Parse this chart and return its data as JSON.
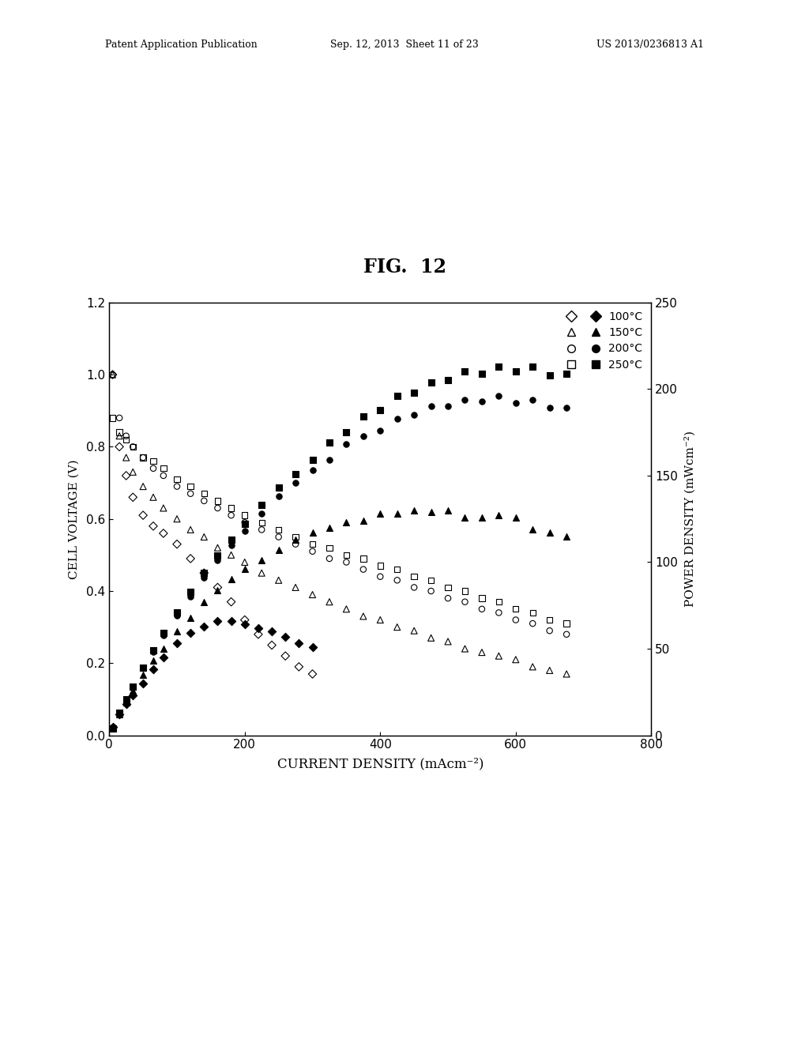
{
  "title": "FIG.  12",
  "xlabel": "CURRENT DENSITY (mAcm⁻²)",
  "ylabel_left": "CELL VOLTAGE (V)",
  "ylabel_right": "POWER DENSITY (mWcm⁻²)",
  "xlim": [
    0,
    800
  ],
  "ylim_left": [
    0,
    1.2
  ],
  "ylim_right": [
    0,
    250
  ],
  "header_left": "Patent Application Publication",
  "header_mid": "Sep. 12, 2013  Sheet 11 of 23",
  "header_right": "US 2013/0236813 A1",
  "voltage_100": {
    "x": [
      5,
      15,
      25,
      35,
      50,
      65,
      80,
      100,
      120,
      140,
      160,
      180,
      200,
      220,
      240,
      260,
      280,
      300
    ],
    "y": [
      1.0,
      0.8,
      0.72,
      0.66,
      0.61,
      0.58,
      0.56,
      0.53,
      0.49,
      0.45,
      0.41,
      0.37,
      0.32,
      0.28,
      0.25,
      0.22,
      0.19,
      0.17
    ]
  },
  "power_100": {
    "x": [
      5,
      15,
      25,
      35,
      50,
      65,
      80,
      100,
      120,
      140,
      160,
      180,
      200,
      220,
      240,
      260,
      280,
      300
    ],
    "y": [
      5,
      12,
      18,
      23,
      30,
      38,
      45,
      53,
      59,
      63,
      66,
      66,
      64,
      62,
      60,
      57,
      53,
      51
    ]
  },
  "voltage_150": {
    "x": [
      5,
      15,
      25,
      35,
      50,
      65,
      80,
      100,
      120,
      140,
      160,
      180,
      200,
      225,
      250,
      275,
      300,
      325,
      350,
      375,
      400,
      425,
      450,
      475,
      500,
      525,
      550,
      575,
      600,
      625,
      650,
      675
    ],
    "y": [
      1.0,
      0.83,
      0.77,
      0.73,
      0.69,
      0.66,
      0.63,
      0.6,
      0.57,
      0.55,
      0.52,
      0.5,
      0.48,
      0.45,
      0.43,
      0.41,
      0.39,
      0.37,
      0.35,
      0.33,
      0.32,
      0.3,
      0.29,
      0.27,
      0.26,
      0.24,
      0.23,
      0.22,
      0.21,
      0.19,
      0.18,
      0.17
    ]
  },
  "power_150": {
    "x": [
      5,
      15,
      25,
      35,
      50,
      65,
      80,
      100,
      120,
      140,
      160,
      180,
      200,
      225,
      250,
      275,
      300,
      325,
      350,
      375,
      400,
      425,
      450,
      475,
      500,
      525,
      550,
      575,
      600,
      625,
      650,
      675
    ],
    "y": [
      5,
      12,
      19,
      26,
      35,
      43,
      50,
      60,
      68,
      77,
      84,
      90,
      96,
      101,
      107,
      113,
      117,
      120,
      123,
      124,
      128,
      128,
      130,
      129,
      130,
      126,
      126,
      127,
      126,
      119,
      117,
      115
    ]
  },
  "voltage_200": {
    "x": [
      5,
      15,
      25,
      35,
      50,
      65,
      80,
      100,
      120,
      140,
      160,
      180,
      200,
      225,
      250,
      275,
      300,
      325,
      350,
      375,
      400,
      425,
      450,
      475,
      500,
      525,
      550,
      575,
      600,
      625,
      650,
      675
    ],
    "y": [
      1.0,
      0.88,
      0.83,
      0.8,
      0.77,
      0.74,
      0.72,
      0.69,
      0.67,
      0.65,
      0.63,
      0.61,
      0.59,
      0.57,
      0.55,
      0.53,
      0.51,
      0.49,
      0.48,
      0.46,
      0.44,
      0.43,
      0.41,
      0.4,
      0.38,
      0.37,
      0.35,
      0.34,
      0.32,
      0.31,
      0.29,
      0.28
    ]
  },
  "power_200": {
    "x": [
      5,
      15,
      25,
      35,
      50,
      65,
      80,
      100,
      120,
      140,
      160,
      180,
      200,
      225,
      250,
      275,
      300,
      325,
      350,
      375,
      400,
      425,
      450,
      475,
      500,
      525,
      550,
      575,
      600,
      625,
      650,
      675
    ],
    "y": [
      5,
      13,
      21,
      28,
      39,
      48,
      58,
      69,
      80,
      91,
      101,
      110,
      118,
      128,
      138,
      146,
      153,
      159,
      168,
      173,
      176,
      183,
      185,
      190,
      190,
      194,
      193,
      196,
      192,
      194,
      189,
      189
    ]
  },
  "voltage_250": {
    "x": [
      5,
      15,
      25,
      35,
      50,
      65,
      80,
      100,
      120,
      140,
      160,
      180,
      200,
      225,
      250,
      275,
      300,
      325,
      350,
      375,
      400,
      425,
      450,
      475,
      500,
      525,
      550,
      575,
      600,
      625,
      650,
      675
    ],
    "y": [
      0.88,
      0.84,
      0.82,
      0.8,
      0.77,
      0.76,
      0.74,
      0.71,
      0.69,
      0.67,
      0.65,
      0.63,
      0.61,
      0.59,
      0.57,
      0.55,
      0.53,
      0.52,
      0.5,
      0.49,
      0.47,
      0.46,
      0.44,
      0.43,
      0.41,
      0.4,
      0.38,
      0.37,
      0.35,
      0.34,
      0.32,
      0.31
    ]
  },
  "power_250": {
    "x": [
      5,
      15,
      25,
      35,
      50,
      65,
      80,
      100,
      120,
      140,
      160,
      180,
      200,
      225,
      250,
      275,
      300,
      325,
      350,
      375,
      400,
      425,
      450,
      475,
      500,
      525,
      550,
      575,
      600,
      625,
      650,
      675
    ],
    "y": [
      4,
      13,
      21,
      28,
      39,
      49,
      59,
      71,
      83,
      94,
      104,
      113,
      122,
      133,
      143,
      151,
      159,
      169,
      175,
      184,
      188,
      196,
      198,
      204,
      205,
      210,
      209,
      213,
      210,
      213,
      208,
      209
    ]
  },
  "legend_labels": [
    "100°C",
    "150°C",
    "200°C",
    "250°C"
  ],
  "background_color": "#ffffff"
}
